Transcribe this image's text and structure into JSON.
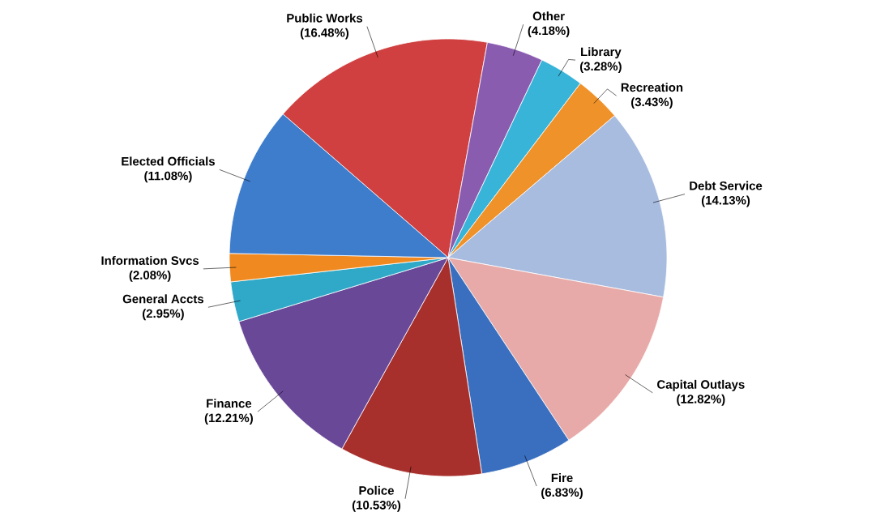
{
  "chart_data": {
    "type": "pie",
    "categories": [
      "Public Works",
      "Other",
      "Library",
      "Recreation",
      "Debt Service",
      "Capital Outlays",
      "Fire",
      "Police",
      "Finance",
      "General Accts",
      "Information Svcs",
      "Elected Officials"
    ],
    "values": [
      16.48,
      4.18,
      3.28,
      3.43,
      14.13,
      12.82,
      6.83,
      10.53,
      12.21,
      2.95,
      2.08,
      11.08
    ],
    "value_labels": [
      "(16.48%)",
      "(4.18%)",
      "(3.28%)",
      "(3.43%)",
      "(14.13%)",
      "(12.82%)",
      "(6.83%)",
      "(10.53%)",
      "(12.21%)",
      "(2.95%)",
      "(2.08%)",
      "(11.08%)"
    ],
    "colors": [
      "#d04040",
      "#8a5cb0",
      "#38b4d8",
      "#f0922a",
      "#a8bce0",
      "#e8aaa8",
      "#3a6fbf",
      "#a8302c",
      "#6a4898",
      "#30a8c8",
      "#f08a20",
      "#3e7ccc"
    ]
  }
}
